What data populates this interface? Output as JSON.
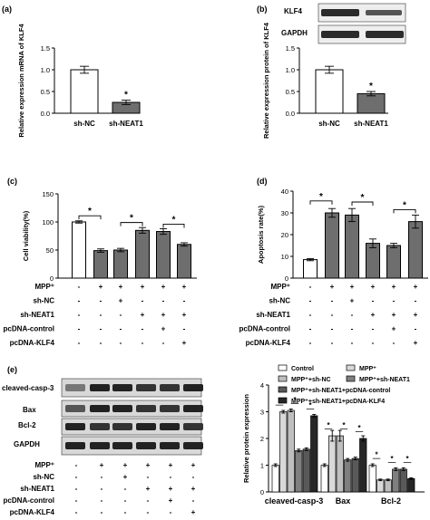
{
  "panel_labels": [
    "(a)",
    "(b)",
    "(c)",
    "(d)",
    "(e)"
  ],
  "blot_b": {
    "rows": [
      "KLF4",
      "GAPDH"
    ]
  },
  "blot_e": {
    "rows": [
      "cleaved-casp-3",
      "Bax",
      "Bcl-2",
      "GAPDH"
    ]
  },
  "treatment_table": {
    "rows": [
      {
        "label": "MPP⁺",
        "marks": [
          "-",
          "+",
          "+",
          "+",
          "+",
          "+"
        ]
      },
      {
        "label": "sh-NC",
        "marks": [
          "-",
          "-",
          "+",
          "-",
          "-",
          "-"
        ]
      },
      {
        "label": "sh-NEAT1",
        "marks": [
          "-",
          "-",
          "-",
          "+",
          "+",
          "+"
        ]
      },
      {
        "label": "pcDNA-control",
        "marks": [
          "-",
          "-",
          "-",
          "-",
          "+",
          "-"
        ]
      },
      {
        "label": "pcDNA-KLF4",
        "marks": [
          "-",
          "-",
          "-",
          "-",
          "-",
          "+"
        ]
      }
    ]
  },
  "colors": {
    "white_bar": "#ffffff",
    "grey_bar": "#6e6e6e",
    "dark_bar": "#555555",
    "axis": "#000000"
  },
  "chart_data": [
    {
      "id": "a",
      "type": "bar",
      "categories": [
        "sh-NC",
        "sh-NEAT1"
      ],
      "values": [
        1.0,
        0.25
      ],
      "errors": [
        0.08,
        0.05
      ],
      "ylabel": "Relative expression mRNA of KLF4",
      "ylim": [
        0,
        1.5
      ],
      "yticks": [
        "0.0",
        "0.5",
        "1.0",
        "1.5"
      ],
      "annotations": [
        "*"
      ]
    },
    {
      "id": "b",
      "type": "bar",
      "categories": [
        "sh-NC",
        "sh-NEAT1"
      ],
      "values": [
        1.0,
        0.45
      ],
      "errors": [
        0.08,
        0.05
      ],
      "ylabel": "Relative expression protein of KLF4",
      "ylim": [
        0,
        1.5
      ],
      "yticks": [
        "0.0",
        "0.5",
        "1.0",
        "1.5"
      ],
      "annotations": [
        "*"
      ]
    },
    {
      "id": "c",
      "type": "bar",
      "values": [
        100,
        49,
        50,
        85,
        83,
        60
      ],
      "errors": [
        2,
        3,
        3,
        5,
        5,
        3
      ],
      "ylabel": "Cell viability(%)",
      "ylim": [
        0,
        150
      ],
      "yticks": [
        "0",
        "50",
        "100",
        "150"
      ],
      "annotations": [
        "*",
        "*",
        "*"
      ]
    },
    {
      "id": "d",
      "type": "bar",
      "values": [
        8.5,
        30,
        29,
        16,
        15,
        26
      ],
      "errors": [
        0.5,
        2,
        3,
        2,
        1,
        3
      ],
      "ylabel": "Apoptosis rate(%)",
      "ylim": [
        0,
        40
      ],
      "yticks": [
        "0",
        "10",
        "20",
        "30",
        "40"
      ],
      "annotations": [
        "*",
        "*",
        "*"
      ]
    },
    {
      "id": "e",
      "type": "bar",
      "categories": [
        "cleaved-casp-3",
        "Bax",
        "Bcl-2"
      ],
      "ylabel": "Relative protein expression",
      "ylim": [
        0,
        4
      ],
      "yticks": [
        "0",
        "1",
        "2",
        "3",
        "4"
      ],
      "series": [
        {
          "name": "Control",
          "values": [
            1.0,
            1.0,
            1.0
          ],
          "errors": [
            0.05,
            0.05,
            0.05
          ]
        },
        {
          "name": "MPP⁺",
          "values": [
            3.0,
            2.1,
            0.45
          ],
          "errors": [
            0.05,
            0.2,
            0.03
          ]
        },
        {
          "name": "MPP⁺+sh-NC",
          "values": [
            3.05,
            2.1,
            0.45
          ],
          "errors": [
            0.05,
            0.2,
            0.03
          ]
        },
        {
          "name": "MPP⁺+sh-NEAT1",
          "values": [
            1.55,
            1.2,
            0.85
          ],
          "errors": [
            0.05,
            0.05,
            0.05
          ]
        },
        {
          "name": "MPP⁺+sh-NEAT1+pcDNA-control",
          "values": [
            1.6,
            1.25,
            0.85
          ],
          "errors": [
            0.05,
            0.05,
            0.05
          ]
        },
        {
          "name": "MPP⁺+sh-NEAT1+pcDNA-KLF4",
          "values": [
            2.85,
            2.0,
            0.5
          ],
          "errors": [
            0.05,
            0.1,
            0.03
          ]
        }
      ],
      "annotations": [
        "*"
      ]
    }
  ]
}
